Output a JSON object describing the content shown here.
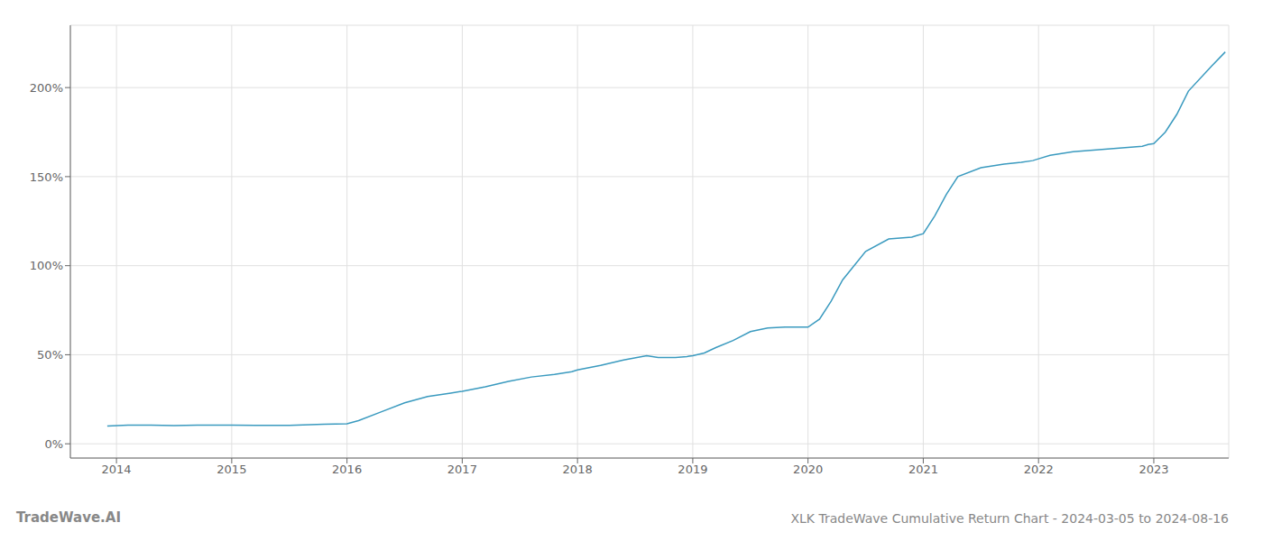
{
  "chart_data": {
    "type": "line",
    "title": "XLK TradeWave Cumulative Return Chart - 2024-03-05 to 2024-08-16",
    "annotations": [
      "TradeWave.AI"
    ],
    "x": [
      2013.92,
      2014.1,
      2014.3,
      2014.5,
      2014.7,
      2014.9,
      2015.0,
      2015.2,
      2015.5,
      2015.8,
      2016.0,
      2016.1,
      2016.3,
      2016.5,
      2016.7,
      2016.9,
      2017.0,
      2017.2,
      2017.4,
      2017.6,
      2017.8,
      2017.95,
      2018.0,
      2018.2,
      2018.4,
      2018.6,
      2018.7,
      2018.85,
      2018.95,
      2019.0,
      2019.1,
      2019.2,
      2019.35,
      2019.5,
      2019.65,
      2019.8,
      2019.95,
      2020.0,
      2020.1,
      2020.2,
      2020.3,
      2020.5,
      2020.7,
      2020.9,
      2020.95,
      2021.0,
      2021.1,
      2021.2,
      2021.3,
      2021.5,
      2021.7,
      2021.85,
      2021.95,
      2022.0,
      2022.1,
      2022.3,
      2022.5,
      2022.7,
      2022.9,
      2022.95,
      2023.0,
      2023.1,
      2023.2,
      2023.3,
      2023.5,
      2023.62
    ],
    "values": [
      10,
      10.5,
      10.5,
      10.2,
      10.5,
      10.5,
      10.5,
      10.3,
      10.3,
      11.0,
      11.2,
      13.0,
      18.0,
      23.0,
      26.5,
      28.5,
      29.5,
      32.0,
      35.0,
      37.5,
      39.0,
      40.5,
      41.5,
      44.0,
      47.0,
      49.5,
      48.5,
      48.5,
      49.0,
      49.5,
      51.0,
      54.0,
      58.0,
      63.0,
      65.0,
      65.5,
      65.5,
      65.5,
      70.0,
      80.0,
      92.0,
      108.0,
      115.0,
      116.0,
      117.0,
      118.0,
      128.0,
      140.0,
      150.0,
      155.0,
      157.0,
      158.0,
      159.0,
      160.0,
      162.0,
      164.0,
      165.0,
      166.0,
      167.0,
      168.0,
      168.5,
      175.0,
      185.0,
      198.0,
      212.0,
      220.0
    ],
    "color": "#3a9abf",
    "xlim": [
      2013.6,
      2023.65
    ],
    "ylim": [
      -8,
      235
    ],
    "xticks": [
      2014,
      2015,
      2016,
      2017,
      2018,
      2019,
      2020,
      2021,
      2022,
      2023
    ],
    "yticks": [
      {
        "value": 0,
        "label": "0%"
      },
      {
        "value": 50,
        "label": "50%"
      },
      {
        "value": 100,
        "label": "100%"
      },
      {
        "value": 150,
        "label": "150%"
      },
      {
        "value": 200,
        "label": "200%"
      }
    ],
    "grid": true
  }
}
